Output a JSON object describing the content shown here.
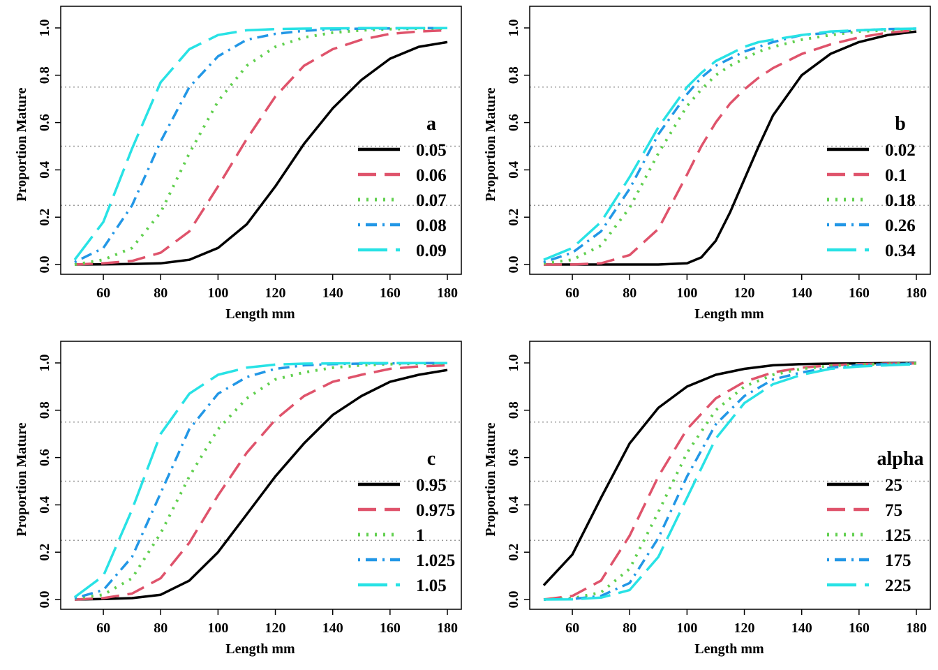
{
  "chart_data": [
    {
      "type": "line",
      "xlabel": "Length mm",
      "ylabel": "Proportion Mature",
      "xlim": [
        50,
        180
      ],
      "ylim": [
        0,
        1
      ],
      "x_ticks": [
        "60",
        "80",
        "100",
        "120",
        "140",
        "160",
        "180"
      ],
      "y_ticks": [
        "0.0",
        "0.2",
        "0.4",
        "0.6",
        "0.8",
        "1.0"
      ],
      "reference_lines": [
        0.25,
        0.5,
        0.75
      ],
      "legend": {
        "title": "a",
        "position": "right"
      },
      "x": [
        50,
        60,
        70,
        80,
        90,
        100,
        110,
        120,
        130,
        140,
        150,
        160,
        170,
        180
      ],
      "series": [
        {
          "name": "0.05",
          "values": [
            0.0,
            0.001,
            0.002,
            0.005,
            0.02,
            0.07,
            0.17,
            0.33,
            0.51,
            0.66,
            0.78,
            0.87,
            0.92,
            0.94
          ]
        },
        {
          "name": "0.06",
          "values": [
            0.0,
            0.005,
            0.015,
            0.05,
            0.14,
            0.33,
            0.53,
            0.71,
            0.84,
            0.91,
            0.95,
            0.975,
            0.985,
            0.99
          ]
        },
        {
          "name": "0.07",
          "values": [
            0.0,
            0.02,
            0.07,
            0.22,
            0.47,
            0.69,
            0.84,
            0.92,
            0.96,
            0.98,
            0.99,
            0.995,
            0.997,
            0.998
          ]
        },
        {
          "name": "0.08",
          "values": [
            0.01,
            0.07,
            0.25,
            0.52,
            0.75,
            0.88,
            0.95,
            0.975,
            0.988,
            0.994,
            0.997,
            0.998,
            0.999,
            0.999
          ]
        },
        {
          "name": "0.09",
          "values": [
            0.02,
            0.18,
            0.49,
            0.77,
            0.91,
            0.97,
            0.99,
            0.995,
            0.997,
            0.998,
            0.999,
            0.999,
            0.999,
            0.999
          ]
        }
      ]
    },
    {
      "type": "line",
      "xlabel": "Length mm",
      "ylabel": "Proportion Mature",
      "xlim": [
        50,
        180
      ],
      "ylim": [
        0,
        1
      ],
      "x_ticks": [
        "60",
        "80",
        "100",
        "120",
        "140",
        "160",
        "180"
      ],
      "y_ticks": [
        "0.0",
        "0.2",
        "0.4",
        "0.6",
        "0.8",
        "1.0"
      ],
      "reference_lines": [
        0.25,
        0.5,
        0.75
      ],
      "legend": {
        "title": "b",
        "position": "right"
      },
      "x": [
        50,
        60,
        70,
        80,
        90,
        100,
        105,
        110,
        115,
        120,
        125,
        130,
        140,
        150,
        160,
        170,
        180
      ],
      "series": [
        {
          "name": "0.02",
          "values": [
            0.0,
            0.0,
            0.0,
            0.0,
            0.0,
            0.005,
            0.03,
            0.1,
            0.22,
            0.36,
            0.5,
            0.63,
            0.8,
            0.89,
            0.94,
            0.97,
            0.985
          ]
        },
        {
          "name": "0.1",
          "values": [
            0.0,
            0.0,
            0.005,
            0.04,
            0.15,
            0.38,
            0.5,
            0.6,
            0.68,
            0.74,
            0.79,
            0.83,
            0.89,
            0.93,
            0.96,
            0.98,
            0.99
          ]
        },
        {
          "name": "0.18",
          "values": [
            0.005,
            0.02,
            0.08,
            0.24,
            0.47,
            0.67,
            0.74,
            0.8,
            0.84,
            0.87,
            0.9,
            0.92,
            0.95,
            0.97,
            0.985,
            0.99,
            0.995
          ]
        },
        {
          "name": "0.26",
          "values": [
            0.01,
            0.05,
            0.14,
            0.32,
            0.55,
            0.72,
            0.79,
            0.84,
            0.87,
            0.9,
            0.92,
            0.94,
            0.97,
            0.98,
            0.99,
            0.995,
            0.997
          ]
        },
        {
          "name": "0.34",
          "values": [
            0.02,
            0.07,
            0.18,
            0.37,
            0.58,
            0.75,
            0.81,
            0.86,
            0.89,
            0.92,
            0.94,
            0.95,
            0.97,
            0.985,
            0.99,
            0.995,
            0.997
          ]
        }
      ]
    },
    {
      "type": "line",
      "xlabel": "Length mm",
      "ylabel": "Proportion Mature",
      "xlim": [
        50,
        180
      ],
      "ylim": [
        0,
        1
      ],
      "x_ticks": [
        "60",
        "80",
        "100",
        "120",
        "140",
        "160",
        "180"
      ],
      "y_ticks": [
        "0.0",
        "0.2",
        "0.4",
        "0.6",
        "0.8",
        "1.0"
      ],
      "reference_lines": [
        0.25,
        0.5,
        0.75
      ],
      "legend": {
        "title": "c",
        "position": "right"
      },
      "x": [
        50,
        60,
        70,
        80,
        90,
        100,
        110,
        120,
        130,
        140,
        150,
        160,
        170,
        180
      ],
      "series": [
        {
          "name": "0.95",
          "values": [
            0.0,
            0.002,
            0.006,
            0.02,
            0.08,
            0.2,
            0.36,
            0.52,
            0.66,
            0.78,
            0.86,
            0.92,
            0.95,
            0.97
          ]
        },
        {
          "name": "0.975",
          "values": [
            0.0,
            0.006,
            0.025,
            0.09,
            0.24,
            0.44,
            0.62,
            0.76,
            0.86,
            0.92,
            0.95,
            0.975,
            0.985,
            0.99
          ]
        },
        {
          "name": "1",
          "values": [
            0.005,
            0.02,
            0.09,
            0.28,
            0.52,
            0.72,
            0.85,
            0.93,
            0.96,
            0.98,
            0.99,
            0.995,
            0.997,
            0.998
          ]
        },
        {
          "name": "1.025",
          "values": [
            0.005,
            0.04,
            0.18,
            0.45,
            0.72,
            0.87,
            0.94,
            0.975,
            0.99,
            0.995,
            0.997,
            0.998,
            0.999,
            0.999
          ]
        },
        {
          "name": "1.05",
          "values": [
            0.01,
            0.1,
            0.38,
            0.7,
            0.87,
            0.95,
            0.98,
            0.993,
            0.997,
            0.998,
            0.999,
            0.999,
            0.999,
            0.999
          ]
        }
      ]
    },
    {
      "type": "line",
      "xlabel": "Length mm",
      "ylabel": "Proportion Mature",
      "xlim": [
        50,
        180
      ],
      "ylim": [
        0,
        1
      ],
      "x_ticks": [
        "60",
        "80",
        "100",
        "120",
        "140",
        "160",
        "180"
      ],
      "y_ticks": [
        "0.0",
        "0.2",
        "0.4",
        "0.6",
        "0.8",
        "1.0"
      ],
      "reference_lines": [
        0.25,
        0.5,
        0.75
      ],
      "legend": {
        "title": "alpha",
        "position": "right"
      },
      "x": [
        50,
        60,
        70,
        80,
        90,
        100,
        110,
        120,
        130,
        140,
        150,
        160,
        170,
        180
      ],
      "series": [
        {
          "name": "25",
          "values": [
            0.06,
            0.19,
            0.43,
            0.66,
            0.81,
            0.9,
            0.95,
            0.975,
            0.99,
            0.995,
            0.997,
            0.998,
            0.999,
            1.0
          ]
        },
        {
          "name": "75",
          "values": [
            0.0,
            0.015,
            0.08,
            0.27,
            0.52,
            0.72,
            0.85,
            0.92,
            0.96,
            0.98,
            0.99,
            0.995,
            0.997,
            0.998
          ]
        },
        {
          "name": "125",
          "values": [
            0.0,
            0.005,
            0.03,
            0.13,
            0.37,
            0.62,
            0.8,
            0.9,
            0.95,
            0.975,
            0.988,
            0.993,
            0.996,
            0.998
          ]
        },
        {
          "name": "175",
          "values": [
            0.0,
            0.002,
            0.015,
            0.07,
            0.26,
            0.52,
            0.74,
            0.86,
            0.93,
            0.96,
            0.98,
            0.99,
            0.995,
            0.997
          ]
        },
        {
          "name": "225",
          "values": [
            0.0,
            0.001,
            0.008,
            0.04,
            0.18,
            0.43,
            0.68,
            0.83,
            0.91,
            0.95,
            0.975,
            0.985,
            0.99,
            0.995
          ]
        }
      ]
    }
  ],
  "series_styles": [
    {
      "color": "#000000",
      "dash": "",
      "width": 3.5
    },
    {
      "color": "#DF536B",
      "dash": "26 12",
      "width": 3.5
    },
    {
      "color": "#61D04F",
      "dash": "3 9",
      "width": 4
    },
    {
      "color": "#2297E6",
      "dash": "3 8 16 8",
      "width": 3.5
    },
    {
      "color": "#28E2E5",
      "dash": "42 12",
      "width": 3.5
    }
  ],
  "reference_line_color": "#9a9a9a"
}
